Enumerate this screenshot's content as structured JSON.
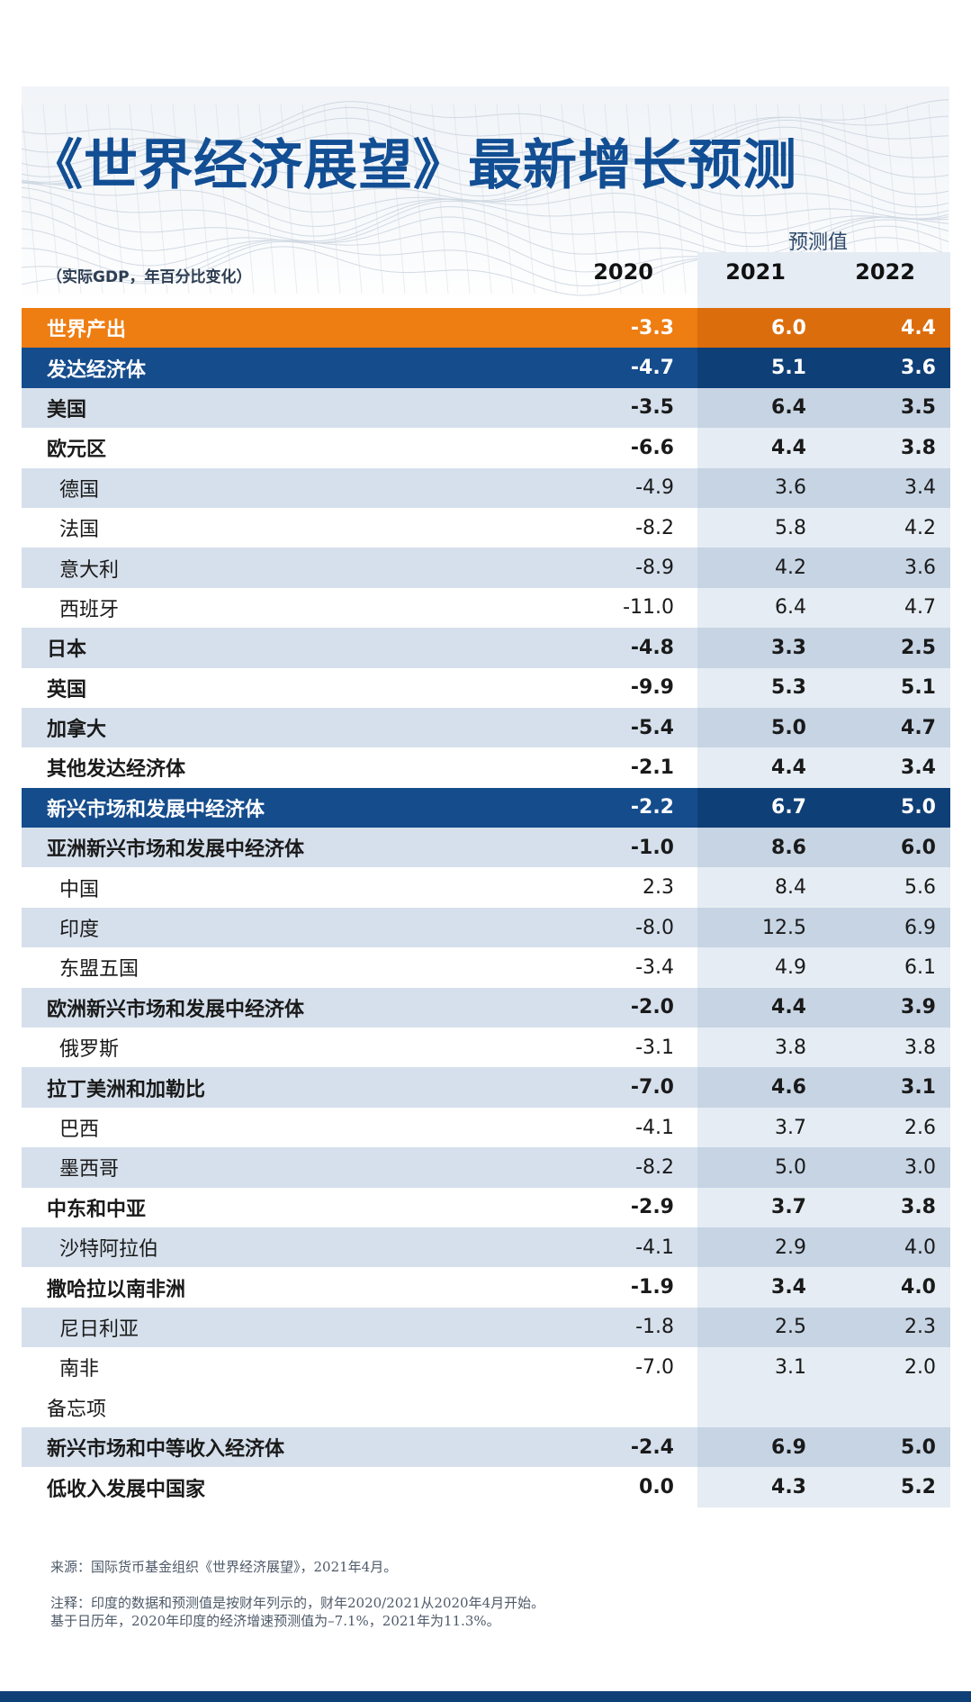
{
  "title": "《世界经济展望》最新增长预测",
  "units": "（实际GDP，年百分比变化）",
  "forecast_label": "预测值",
  "years": [
    "2020",
    "2021",
    "2022"
  ],
  "colors": {
    "title": "#124e93",
    "world_row": "#ee7d12",
    "group_row": "#154c8c",
    "shaded_row": "#d6e0ec",
    "forecast_column": "#e5ecf3"
  },
  "chart_data": {
    "type": "table",
    "title": "《世界经济展望》最新增长预测",
    "subtitle": "（实际GDP，年百分比变化）",
    "columns": [
      "2020",
      "2021",
      "2022"
    ],
    "column_group": "预测值",
    "rows": [
      {
        "name": "世界产出",
        "values": [
          "-3.3",
          "6.0",
          "4.4"
        ],
        "style": "world",
        "bold": true,
        "indent": false
      },
      {
        "name": "发达经济体",
        "values": [
          "-4.7",
          "5.1",
          "3.6"
        ],
        "style": "group",
        "bold": true,
        "indent": false
      },
      {
        "name": "美国",
        "values": [
          "-3.5",
          "6.4",
          "3.5"
        ],
        "style": "shaded",
        "bold": true,
        "indent": false
      },
      {
        "name": "欧元区",
        "values": [
          "-6.6",
          "4.4",
          "3.8"
        ],
        "style": "plain",
        "bold": true,
        "indent": false
      },
      {
        "name": "德国",
        "values": [
          "-4.9",
          "3.6",
          "3.4"
        ],
        "style": "shaded",
        "bold": false,
        "indent": true
      },
      {
        "name": "法国",
        "values": [
          "-8.2",
          "5.8",
          "4.2"
        ],
        "style": "plain",
        "bold": false,
        "indent": true
      },
      {
        "name": "意大利",
        "values": [
          "-8.9",
          "4.2",
          "3.6"
        ],
        "style": "shaded",
        "bold": false,
        "indent": true
      },
      {
        "name": "西班牙",
        "values": [
          "-11.0",
          "6.4",
          "4.7"
        ],
        "style": "plain",
        "bold": false,
        "indent": true
      },
      {
        "name": "日本",
        "values": [
          "-4.8",
          "3.3",
          "2.5"
        ],
        "style": "shaded",
        "bold": true,
        "indent": false
      },
      {
        "name": "英国",
        "values": [
          "-9.9",
          "5.3",
          "5.1"
        ],
        "style": "plain",
        "bold": true,
        "indent": false
      },
      {
        "name": "加拿大",
        "values": [
          "-5.4",
          "5.0",
          "4.7"
        ],
        "style": "shaded",
        "bold": true,
        "indent": false
      },
      {
        "name": "其他发达经济体",
        "values": [
          "-2.1",
          "4.4",
          "3.4"
        ],
        "style": "plain",
        "bold": true,
        "indent": false
      },
      {
        "name": "新兴市场和发展中经济体",
        "values": [
          "-2.2",
          "6.7",
          "5.0"
        ],
        "style": "group",
        "bold": true,
        "indent": false
      },
      {
        "name": "亚洲新兴市场和发展中经济体",
        "values": [
          "-1.0",
          "8.6",
          "6.0"
        ],
        "style": "shaded",
        "bold": true,
        "indent": false
      },
      {
        "name": "中国",
        "values": [
          "2.3",
          "8.4",
          "5.6"
        ],
        "style": "plain",
        "bold": false,
        "indent": true
      },
      {
        "name": "印度",
        "values": [
          "-8.0",
          "12.5",
          "6.9"
        ],
        "style": "shaded",
        "bold": false,
        "indent": true
      },
      {
        "name": "东盟五国",
        "values": [
          "-3.4",
          "4.9",
          "6.1"
        ],
        "style": "plain",
        "bold": false,
        "indent": true
      },
      {
        "name": "欧洲新兴市场和发展中经济体",
        "values": [
          "-2.0",
          "4.4",
          "3.9"
        ],
        "style": "shaded",
        "bold": true,
        "indent": false
      },
      {
        "name": "俄罗斯",
        "values": [
          "-3.1",
          "3.8",
          "3.8"
        ],
        "style": "plain",
        "bold": false,
        "indent": true
      },
      {
        "name": "拉丁美洲和加勒比",
        "values": [
          "-7.0",
          "4.6",
          "3.1"
        ],
        "style": "shaded",
        "bold": true,
        "indent": false
      },
      {
        "name": "巴西",
        "values": [
          "-4.1",
          "3.7",
          "2.6"
        ],
        "style": "plain",
        "bold": false,
        "indent": true
      },
      {
        "name": "墨西哥",
        "values": [
          "-8.2",
          "5.0",
          "3.0"
        ],
        "style": "shaded",
        "bold": false,
        "indent": true
      },
      {
        "name": "中东和中亚",
        "values": [
          "-2.9",
          "3.7",
          "3.8"
        ],
        "style": "plain",
        "bold": true,
        "indent": false
      },
      {
        "name": "沙特阿拉伯",
        "values": [
          "-4.1",
          "2.9",
          "4.0"
        ],
        "style": "shaded",
        "bold": false,
        "indent": true
      },
      {
        "name": "撒哈拉以南非洲",
        "values": [
          "-1.9",
          "3.4",
          "4.0"
        ],
        "style": "plain",
        "bold": true,
        "indent": false
      },
      {
        "name": "尼日利亚",
        "values": [
          "-1.8",
          "2.5",
          "2.3"
        ],
        "style": "shaded",
        "bold": false,
        "indent": true
      },
      {
        "name": "南非",
        "values": [
          "-7.0",
          "3.1",
          "2.0"
        ],
        "style": "plain",
        "bold": false,
        "indent": true
      },
      {
        "name": "备忘项",
        "values": [
          "",
          "",
          ""
        ],
        "style": "note",
        "bold": false,
        "indent": false
      },
      {
        "name": "新兴市场和中等收入经济体",
        "values": [
          "-2.4",
          "6.9",
          "5.0"
        ],
        "style": "shaded",
        "bold": true,
        "indent": false
      },
      {
        "name": "低收入发展中国家",
        "values": [
          "0.0",
          "4.3",
          "5.2"
        ],
        "style": "plain",
        "bold": true,
        "indent": false
      }
    ]
  },
  "notes": {
    "source": "来源：国际货币基金组织《世界经济展望》，2021年4月。",
    "note_line1": "注释：印度的数据和预测值是按财年列示的，财年2020/2021从2020年4月开始。",
    "note_line2": "基于日历年，2020年印度的经济增速预测值为–7.1%，2021年为11.3%。"
  }
}
